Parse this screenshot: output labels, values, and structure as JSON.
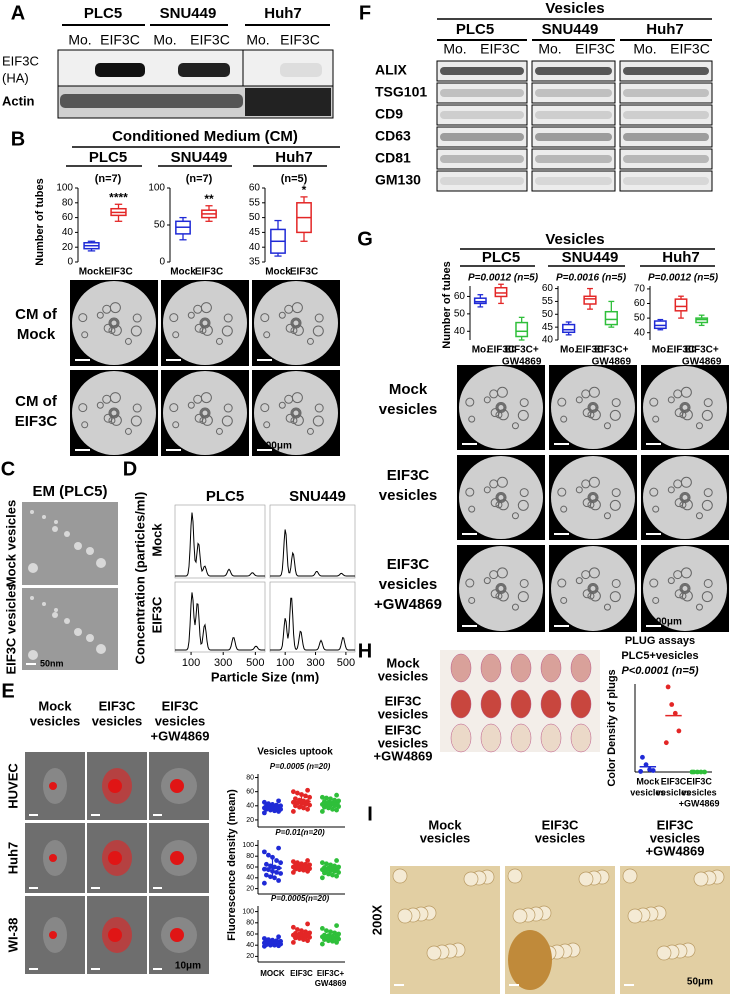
{
  "panels": {
    "A": {
      "label": "A",
      "groups": [
        "PLC5",
        "SNU449",
        "Huh7"
      ],
      "lanes": [
        "Mo.",
        "EIF3C",
        "Mo.",
        "EIF3C",
        "Mo.",
        "EIF3C"
      ],
      "rows": [
        [
          "EIF3C",
          "(HA)"
        ],
        [
          "Actin"
        ]
      ]
    },
    "B": {
      "label": "B",
      "title": "Conditioned Medium (CM)",
      "y_label": "Number of tubes",
      "image_rows": [
        [
          "CM of",
          "Mock"
        ],
        [
          "CM of",
          "EIF3C"
        ]
      ],
      "scale_bar": "100μm",
      "charts": [
        {
          "type": "box",
          "title": "PLC5",
          "note": "(n=7)",
          "categories": [
            [
              "Mock"
            ],
            [
              "EIF3C"
            ]
          ],
          "colors": [
            "#1f2ad6",
            "#e32626"
          ],
          "significance": [
            null,
            "****"
          ],
          "ylim": [
            0,
            100
          ],
          "yticks": [
            0,
            20,
            40,
            60,
            80,
            100
          ],
          "boxes": [
            {
              "min": 15,
              "q1": 18,
              "median": 22,
              "q3": 26,
              "max": 28
            },
            {
              "min": 55,
              "q1": 63,
              "median": 67,
              "q3": 72,
              "max": 78
            }
          ]
        },
        {
          "type": "box",
          "title": "SNU449",
          "note": "(n=7)",
          "categories": [
            [
              "Mock"
            ],
            [
              "EIF3C"
            ]
          ],
          "colors": [
            "#1f2ad6",
            "#e32626"
          ],
          "significance": [
            null,
            "**"
          ],
          "ylim": [
            0,
            100
          ],
          "yticks": [
            0,
            50,
            100
          ],
          "boxes": [
            {
              "min": 30,
              "q1": 38,
              "median": 47,
              "q3": 55,
              "max": 60
            },
            {
              "min": 55,
              "q1": 60,
              "median": 65,
              "q3": 70,
              "max": 76
            }
          ]
        },
        {
          "type": "box",
          "title": "Huh7",
          "note": "(n=5)",
          "categories": [
            [
              "Mock"
            ],
            [
              "EIF3C"
            ]
          ],
          "colors": [
            "#1f2ad6",
            "#e32626"
          ],
          "significance": [
            null,
            "*"
          ],
          "ylim": [
            35,
            60
          ],
          "yticks": [
            35,
            40,
            45,
            50,
            55,
            60
          ],
          "boxes": [
            {
              "min": 37,
              "q1": 38,
              "median": 42,
              "q3": 46,
              "max": 49
            },
            {
              "min": 42,
              "q1": 45,
              "median": 50,
              "q3": 55,
              "max": 57
            }
          ]
        }
      ]
    },
    "C": {
      "label": "C",
      "title": "EM (PLC5)",
      "rows": [
        "Mock vesicles",
        "EIF3C vesicles"
      ],
      "scale_bar": "50nm"
    },
    "D": {
      "label": "D",
      "titles": [
        "PLC5",
        "SNU449"
      ],
      "y_label": "Concentration (particles/ml)",
      "rows": [
        "Mock",
        "EIF3C"
      ],
      "x_label": "Particle Size (nm)",
      "xlim": [
        0,
        560
      ],
      "xticks": [
        100,
        300,
        500
      ]
    },
    "E": {
      "label": "E",
      "columns": [
        [
          "Mock",
          "vesicles"
        ],
        [
          "EIF3C",
          "vesicles"
        ],
        [
          "EIF3C",
          "vesicles",
          "+GW4869"
        ]
      ],
      "rows": [
        "HUVEC",
        "Huh7",
        "WI-38"
      ],
      "scale_bar": "10μm",
      "chart_title": "Vesicles uptook",
      "y_label": "Fluorescence density (mean)",
      "categories": [
        [
          "MOCK"
        ],
        [
          "EIF3C"
        ],
        [
          "EIF3C+",
          "GW4869"
        ]
      ],
      "charts": [
        {
          "type": "scatter",
          "note": "P=0.0005 (n=20)",
          "colors": [
            "#1f2ad6",
            "#e32626",
            "#2fbf3a"
          ],
          "ylim": [
            10,
            85
          ],
          "yticks": [
            20,
            40,
            60,
            80
          ],
          "mean": [
            38,
            46,
            43
          ],
          "sd": [
            4,
            8,
            6
          ],
          "points": [
            [
              30,
              32,
              33,
              34,
              35,
              35,
              36,
              36,
              37,
              37,
              38,
              38,
              39,
              40,
              40,
              41,
              42,
              43,
              45,
              47
            ],
            [
              32,
              35,
              37,
              38,
              40,
              41,
              42,
              43,
              44,
              45,
              46,
              47,
              48,
              50,
              52,
              54,
              56,
              58,
              60,
              62
            ],
            [
              32,
              34,
              35,
              37,
              38,
              39,
              40,
              41,
              42,
              42,
              43,
              44,
              45,
              46,
              47,
              48,
              50,
              51,
              52,
              55
            ]
          ]
        },
        {
          "type": "scatter",
          "note": "P=0.01(n=20)",
          "colors": [
            "#1f2ad6",
            "#e32626",
            "#2fbf3a"
          ],
          "ylim": [
            10,
            110
          ],
          "yticks": [
            20,
            40,
            60,
            80,
            100
          ],
          "mean": [
            58,
            61,
            56
          ],
          "sd": [
            16,
            6,
            8
          ],
          "points": [
            [
              30,
              35,
              40,
              42,
              45,
              48,
              50,
              52,
              55,
              56,
              58,
              60,
              62,
              65,
              68,
              72,
              78,
              82,
              88,
              95
            ],
            [
              50,
              52,
              54,
              55,
              56,
              57,
              58,
              58,
              59,
              60,
              60,
              61,
              62,
              63,
              64,
              65,
              66,
              68,
              70,
              72
            ],
            [
              40,
              43,
              45,
              47,
              49,
              50,
              52,
              53,
              54,
              55,
              56,
              57,
              58,
              59,
              60,
              62,
              64,
              66,
              68,
              72
            ]
          ]
        },
        {
          "type": "scatter",
          "note": "P=0.0005(n=20)",
          "colors": [
            "#1f2ad6",
            "#e32626",
            "#2fbf3a"
          ],
          "ylim": [
            10,
            110
          ],
          "yticks": [
            20,
            40,
            60,
            80,
            100
          ],
          "mean": [
            45,
            59,
            56
          ],
          "sd": [
            4,
            8,
            8
          ],
          "points": [
            [
              38,
              39,
              40,
              40,
              41,
              42,
              42,
              43,
              43,
              44,
              44,
              45,
              45,
              46,
              47,
              48,
              49,
              50,
              52,
              55
            ],
            [
              45,
              48,
              50,
              52,
              53,
              54,
              55,
              56,
              57,
              58,
              58,
              59,
              60,
              61,
              62,
              64,
              66,
              68,
              72,
              78
            ],
            [
              42,
              45,
              47,
              48,
              50,
              51,
              52,
              53,
              54,
              55,
              55,
              56,
              57,
              58,
              60,
              62,
              64,
              66,
              70,
              75
            ]
          ]
        }
      ]
    },
    "F": {
      "label": "F",
      "title": "Vesicles",
      "groups": [
        "PLC5",
        "SNU449",
        "Huh7"
      ],
      "lanes": [
        "Mo.",
        "EIF3C",
        "Mo.",
        "EIF3C",
        "Mo.",
        "EIF3C"
      ],
      "rows": [
        "ALIX",
        "TSG101",
        "CD9",
        "CD63",
        "CD81",
        "GM130"
      ]
    },
    "G": {
      "label": "G",
      "title": "Vesicles",
      "y_label": "Number of tubes",
      "image_rows": [
        [
          "Mock",
          "vesicles"
        ],
        [
          "EIF3C",
          "vesicles"
        ],
        [
          "EIF3C",
          "vesicles",
          "+GW4869"
        ]
      ],
      "scale_bar": "100μm",
      "charts": [
        {
          "type": "box",
          "title": "PLC5",
          "note": "P=0.0012 (n=5)",
          "categories": [
            [
              "Mo."
            ],
            [
              "EIF3C"
            ],
            [
              "EIF3C+",
              "GW4869"
            ]
          ],
          "colors": [
            "#1f2ad6",
            "#e32626",
            "#2fbf3a"
          ],
          "ylim": [
            35,
            66
          ],
          "yticks": [
            40,
            50,
            60
          ],
          "boxes": [
            {
              "min": 54,
              "q1": 56,
              "median": 57,
              "q3": 59,
              "max": 61
            },
            {
              "min": 56,
              "q1": 60,
              "median": 62,
              "q3": 65,
              "max": 67
            },
            {
              "min": 35,
              "q1": 37,
              "median": 40,
              "q3": 45,
              "max": 48
            }
          ]
        },
        {
          "type": "box",
          "title": "SNU449",
          "note": "P=0.0016 (n=5)",
          "categories": [
            [
              "Mo."
            ],
            [
              "EIF3C"
            ],
            [
              "EIF3C+",
              "GW4869"
            ]
          ],
          "colors": [
            "#1f2ad6",
            "#e32626",
            "#2fbf3a"
          ],
          "ylim": [
            40,
            61
          ],
          "yticks": [
            40,
            45,
            50,
            55,
            60
          ],
          "boxes": [
            {
              "min": 42,
              "q1": 43,
              "median": 44,
              "q3": 46,
              "max": 47
            },
            {
              "min": 52,
              "q1": 54,
              "median": 56,
              "q3": 57,
              "max": 60
            },
            {
              "min": 45,
              "q1": 46,
              "median": 48,
              "q3": 51,
              "max": 55
            }
          ]
        },
        {
          "type": "box",
          "title": "Huh7",
          "note": "P=0.0012 (n=5)",
          "categories": [
            [
              "Mo."
            ],
            [
              "EIF3C"
            ],
            [
              "EIF3C+",
              "GW4869"
            ]
          ],
          "colors": [
            "#1f2ad6",
            "#e32626",
            "#2fbf3a"
          ],
          "ylim": [
            35,
            72
          ],
          "yticks": [
            40,
            50,
            60,
            70
          ],
          "boxes": [
            {
              "min": 42,
              "q1": 43,
              "median": 45,
              "q3": 48,
              "max": 49
            },
            {
              "min": 50,
              "q1": 55,
              "median": 58,
              "q3": 63,
              "max": 65
            },
            {
              "min": 45,
              "q1": 47,
              "median": 49,
              "q3": 50,
              "max": 52
            }
          ]
        }
      ]
    },
    "H": {
      "label": "H",
      "rows": [
        [
          "Mock",
          "vesicles"
        ],
        [
          "EIF3C",
          "vesicles"
        ],
        [
          "EIF3C",
          "vesicles",
          "+GW4869"
        ]
      ],
      "chart": {
        "type": "scatter",
        "title": [
          "PLUG assays",
          "PLC5+vesicles"
        ],
        "note": "P<0.0001 (n=5)",
        "y_label": "Color Density of plugs",
        "categories": [
          [
            "Mock",
            "vesicles"
          ],
          [
            "EIF3C",
            "vesicles"
          ],
          [
            "EIF3C",
            "vesicles",
            "+GW4869"
          ]
        ],
        "colors": [
          "#1f2ad6",
          "#e32626",
          "#2fbf3a"
        ],
        "ylim": [
          0,
          300
        ],
        "mean": [
          18,
          192,
          0
        ],
        "points": [
          [
            2,
            5,
            8,
            25,
            50
          ],
          [
            100,
            140,
            200,
            230,
            290
          ],
          [
            0,
            0,
            0,
            0,
            0
          ]
        ]
      }
    },
    "I": {
      "label": "I",
      "columns": [
        [
          "Mock",
          "vesicles"
        ],
        [
          "EIF3C",
          "vesicles"
        ],
        [
          "EIF3C",
          "vesicles",
          "+GW4869"
        ]
      ],
      "magnification": "200X",
      "scale_bar": "50μm"
    }
  }
}
